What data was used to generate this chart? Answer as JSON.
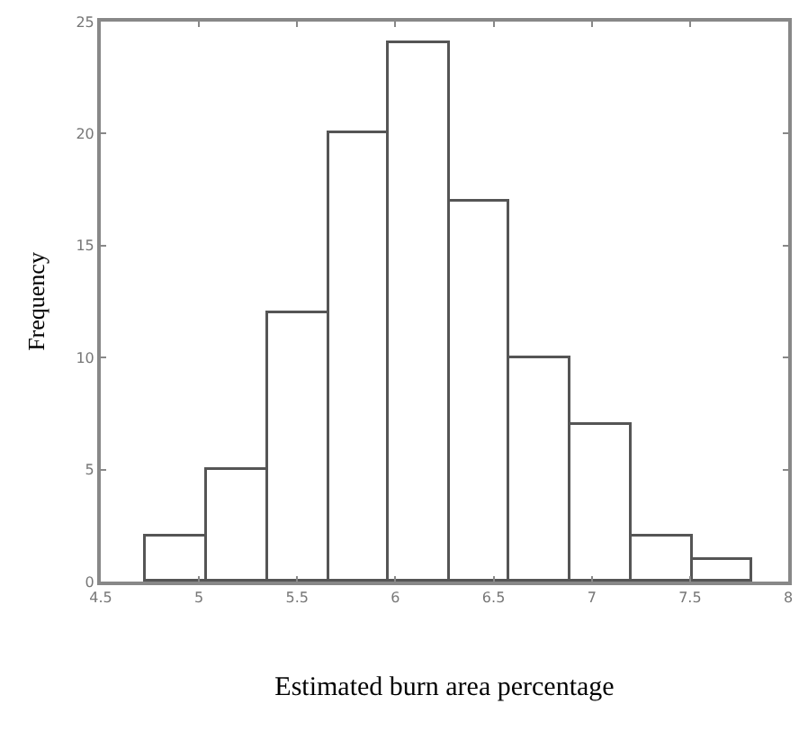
{
  "chart_data": {
    "type": "histogram",
    "xlabel": "Estimated burn area percentage",
    "ylabel": "Frequency",
    "bins": [
      4.73,
      5.04,
      5.35,
      5.66,
      5.97,
      6.28,
      6.58,
      6.89,
      7.2,
      7.51,
      7.82
    ],
    "values": [
      2,
      5,
      12,
      20,
      24,
      17,
      10,
      7,
      2,
      1
    ],
    "color": "#ffffff",
    "xlim": [
      4.5,
      8
    ],
    "xticks": [
      4.5,
      5,
      5.5,
      6,
      6.5,
      7,
      7.5,
      8
    ],
    "ylim": [
      0,
      25
    ],
    "yticks": [
      0,
      5,
      10,
      15,
      20,
      25
    ]
  }
}
